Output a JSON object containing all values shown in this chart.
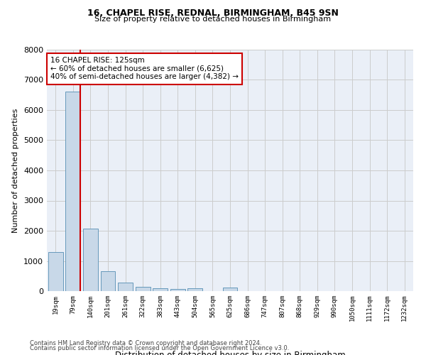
{
  "title1": "16, CHAPEL RISE, REDNAL, BIRMINGHAM, B45 9SN",
  "title2": "Size of property relative to detached houses in Birmingham",
  "xlabel": "Distribution of detached houses by size in Birmingham",
  "ylabel": "Number of detached properties",
  "categories": [
    "19sqm",
    "79sqm",
    "140sqm",
    "201sqm",
    "261sqm",
    "322sqm",
    "383sqm",
    "443sqm",
    "504sqm",
    "565sqm",
    "625sqm",
    "686sqm",
    "747sqm",
    "807sqm",
    "868sqm",
    "929sqm",
    "990sqm",
    "1050sqm",
    "1111sqm",
    "1172sqm",
    "1232sqm"
  ],
  "values": [
    1300,
    6600,
    2080,
    650,
    290,
    140,
    90,
    70,
    90,
    0,
    120,
    0,
    0,
    0,
    0,
    0,
    0,
    0,
    0,
    0,
    0
  ],
  "bar_color": "#c8d8e8",
  "bar_edge_color": "#6699bb",
  "vline_color": "#cc0000",
  "annotation_text": "16 CHAPEL RISE: 125sqm\n← 60% of detached houses are smaller (6,625)\n40% of semi-detached houses are larger (4,382) →",
  "annotation_box_color": "#ffffff",
  "annotation_box_edge": "#cc0000",
  "ylim": [
    0,
    8000
  ],
  "yticks": [
    0,
    1000,
    2000,
    3000,
    4000,
    5000,
    6000,
    7000,
    8000
  ],
  "grid_color": "#cccccc",
  "bg_color": "#eaeff7",
  "footer1": "Contains HM Land Registry data © Crown copyright and database right 2024.",
  "footer2": "Contains public sector information licensed under the Open Government Licence v3.0."
}
